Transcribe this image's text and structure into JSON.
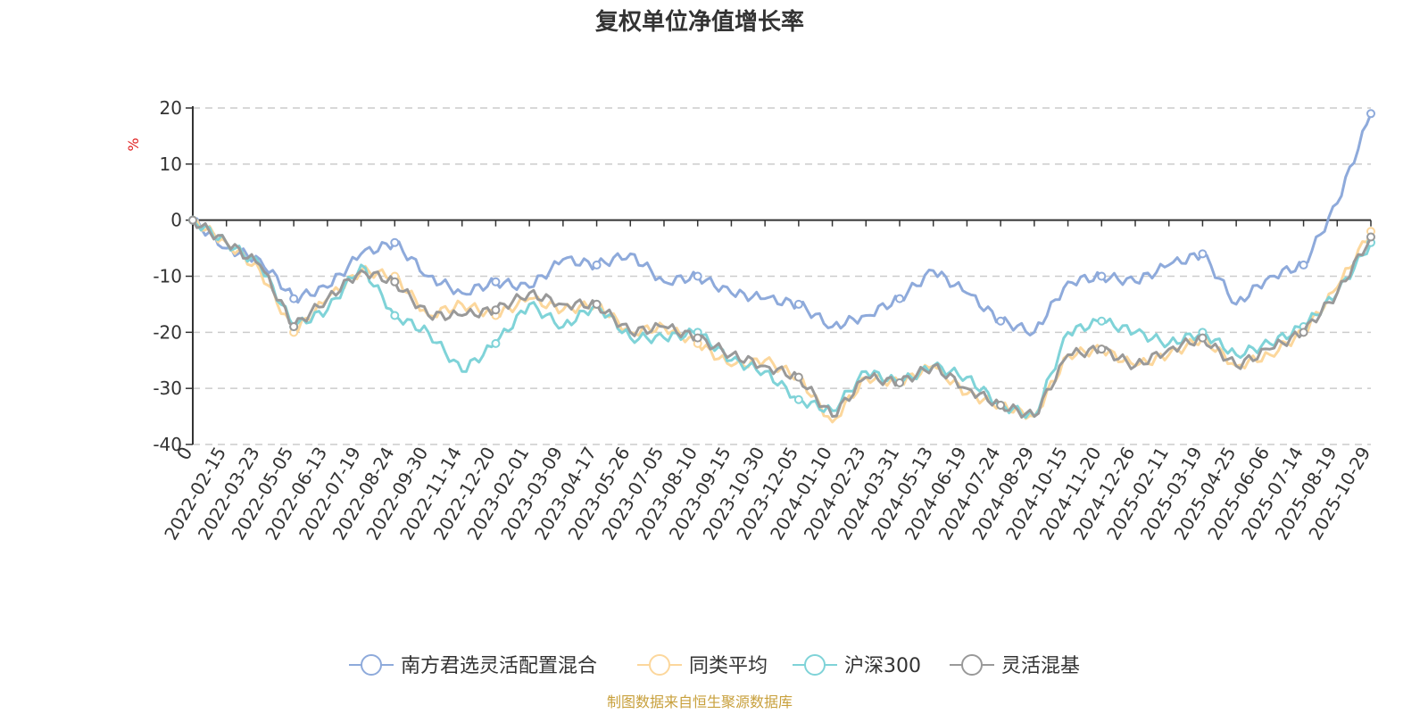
{
  "chart_data": {
    "type": "line",
    "title": "复权单位净值增长率",
    "y_unit": "%",
    "ylim": [
      -40,
      20
    ],
    "y_ticks": [
      "20",
      "10",
      "0",
      "-10",
      "-20",
      "-30",
      "-40"
    ],
    "grid": true,
    "legend_position": "bottom",
    "x_tick_labels": [
      "0",
      "2022-02-15",
      "2022-03-23",
      "2022-05-05",
      "2022-06-13",
      "2022-07-19",
      "2022-08-24",
      "2022-09-30",
      "2022-11-14",
      "2022-12-20",
      "2023-02-01",
      "2023-03-09",
      "2023-04-17",
      "2023-05-26",
      "2023-07-05",
      "2023-08-10",
      "2023-09-15",
      "2023-10-30",
      "2023-12-05",
      "2024-01-10",
      "2024-02-23",
      "2024-03-31",
      "2024-05-13",
      "2024-06-19",
      "2024-07-24",
      "2024-08-29",
      "2024-10-15",
      "2024-11-20",
      "2024-12-26",
      "2025-02-11",
      "2025-03-19",
      "2025-04-25",
      "2025-06-06",
      "2025-07-14",
      "2025-08-19",
      "2025-10-29"
    ],
    "series": [
      {
        "name": "南方君选灵活配置混合",
        "color": "#8eaadb",
        "values": [
          0,
          -5,
          -7,
          -14,
          -12,
          -6,
          -4,
          -10,
          -13,
          -11,
          -12,
          -7,
          -8,
          -6,
          -11,
          -10,
          -13,
          -14,
          -15,
          -19,
          -17,
          -14,
          -9,
          -13,
          -18,
          -20,
          -11,
          -10,
          -11,
          -8,
          -6,
          -15,
          -10,
          -8,
          3,
          19
        ]
      },
      {
        "name": "同类平均",
        "color": "#fcd79c",
        "values": [
          0,
          -4,
          -9,
          -20,
          -14,
          -9,
          -10,
          -17,
          -15,
          -17,
          -14,
          -16,
          -15,
          -20,
          -19,
          -22,
          -26,
          -25,
          -28,
          -36,
          -28,
          -29,
          -26,
          -31,
          -33,
          -35,
          -24,
          -23,
          -26,
          -24,
          -21,
          -26,
          -24,
          -20,
          -12,
          -2
        ]
      },
      {
        "name": "沪深300",
        "color": "#7fd3d8",
        "values": [
          0,
          -4,
          -8,
          -19,
          -16,
          -8,
          -17,
          -20,
          -27,
          -22,
          -15,
          -19,
          -15,
          -21,
          -21,
          -20,
          -25,
          -27,
          -32,
          -34,
          -27,
          -29,
          -26,
          -28,
          -33,
          -35,
          -20,
          -18,
          -20,
          -22,
          -20,
          -24,
          -22,
          -19,
          -13,
          -4
        ]
      },
      {
        "name": "灵活混基",
        "color": "#999999",
        "values": [
          0,
          -4,
          -8,
          -19,
          -14,
          -9,
          -11,
          -17,
          -17,
          -16,
          -13,
          -15,
          -15,
          -20,
          -19,
          -21,
          -24,
          -26,
          -28,
          -35,
          -28,
          -29,
          -26,
          -30,
          -33,
          -35,
          -24,
          -23,
          -26,
          -23,
          -21,
          -26,
          -23,
          -20,
          -13,
          -3
        ]
      }
    ]
  },
  "source_text": "制图数据来自恒生聚源数据库"
}
